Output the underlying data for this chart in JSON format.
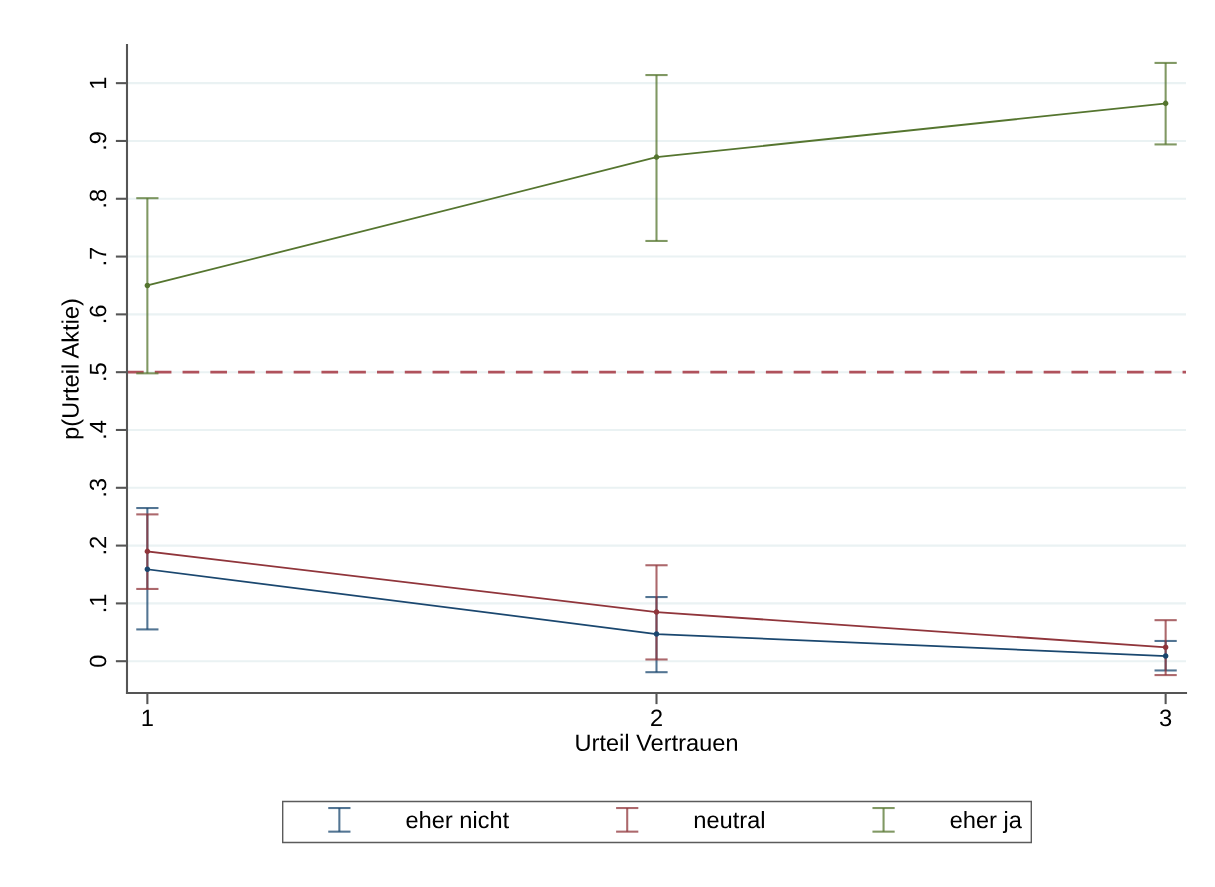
{
  "chart_data": {
    "type": "line",
    "xlabel": "Urteil Vertrauen",
    "ylabel": "p(Urteil Aktie)",
    "x": [
      1,
      2,
      3
    ],
    "series": [
      {
        "name": "eher nicht",
        "color": "#1a476f",
        "values": [
          0.159,
          0.047,
          0.009
        ],
        "errors": [
          [
            0.055,
            0.265
          ],
          [
            -0.019,
            0.111
          ],
          [
            -0.016,
            0.035
          ]
        ]
      },
      {
        "name": "neutral",
        "color": "#90353b",
        "values": [
          0.19,
          0.085,
          0.024
        ],
        "errors": [
          [
            0.125,
            0.254
          ],
          [
            0.003,
            0.166
          ],
          [
            -0.024,
            0.071
          ]
        ]
      },
      {
        "name": "eher ja",
        "color": "#55752f",
        "values": [
          0.65,
          0.872,
          0.965
        ],
        "errors": [
          [
            0.498,
            0.801
          ],
          [
            0.727,
            1.014
          ],
          [
            0.894,
            1.035
          ]
        ]
      }
    ],
    "xlim": [
      0.96,
      3.04
    ],
    "xticks": [
      1,
      2,
      3
    ],
    "ylim": [
      -0.055,
      1.066
    ],
    "yticks": [
      {
        "value": 0,
        "label": "0"
      },
      {
        "value": 0.1,
        "label": ".1"
      },
      {
        "value": 0.2,
        "label": ".2"
      },
      {
        "value": 0.3,
        "label": ".3"
      },
      {
        "value": 0.4,
        "label": ".4"
      },
      {
        "value": 0.5,
        "label": ".5"
      },
      {
        "value": 0.6,
        "label": ".6"
      },
      {
        "value": 0.7,
        "label": ".7"
      },
      {
        "value": 0.8,
        "label": ".8"
      },
      {
        "value": 0.9,
        "label": ".9"
      },
      {
        "value": 1,
        "label": "1"
      }
    ],
    "ref_lines": [
      {
        "axis": "y",
        "value": 0.5,
        "color": "#b0525c",
        "line_style": "dashed"
      }
    ],
    "grid": "y",
    "legend": "bottom",
    "marker": "circle",
    "line_style": "solid"
  }
}
